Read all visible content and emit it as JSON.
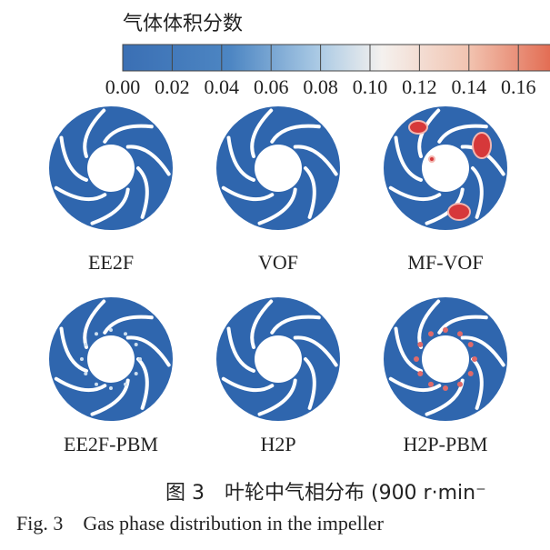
{
  "colorbar": {
    "title": "气体体积分数",
    "ticks": [
      {
        "value": 0,
        "label": "0.00"
      },
      {
        "value": 0.02,
        "label": "0.02"
      },
      {
        "value": 0.04,
        "label": "0.04"
      },
      {
        "value": 0.06,
        "label": "0.06"
      },
      {
        "value": 0.08,
        "label": "0.08"
      },
      {
        "value": 0.1,
        "label": "0.10"
      },
      {
        "value": 0.12,
        "label": "0.12"
      },
      {
        "value": 0.14,
        "label": "0.14"
      },
      {
        "value": 0.16,
        "label": "0.16"
      }
    ]
  },
  "panels": [
    {
      "label": "EE2F"
    },
    {
      "label": "VOF"
    },
    {
      "label": "MF-VOF"
    },
    {
      "label": "EE2F-PBM"
    },
    {
      "label": "H2P"
    },
    {
      "label": "H2P-PBM"
    }
  ],
  "caption": {
    "zh": "图 3　叶轮中气相分布 (900 r·min⁻",
    "en": "Fig. 3　Gas phase distribution in the impeller"
  }
}
